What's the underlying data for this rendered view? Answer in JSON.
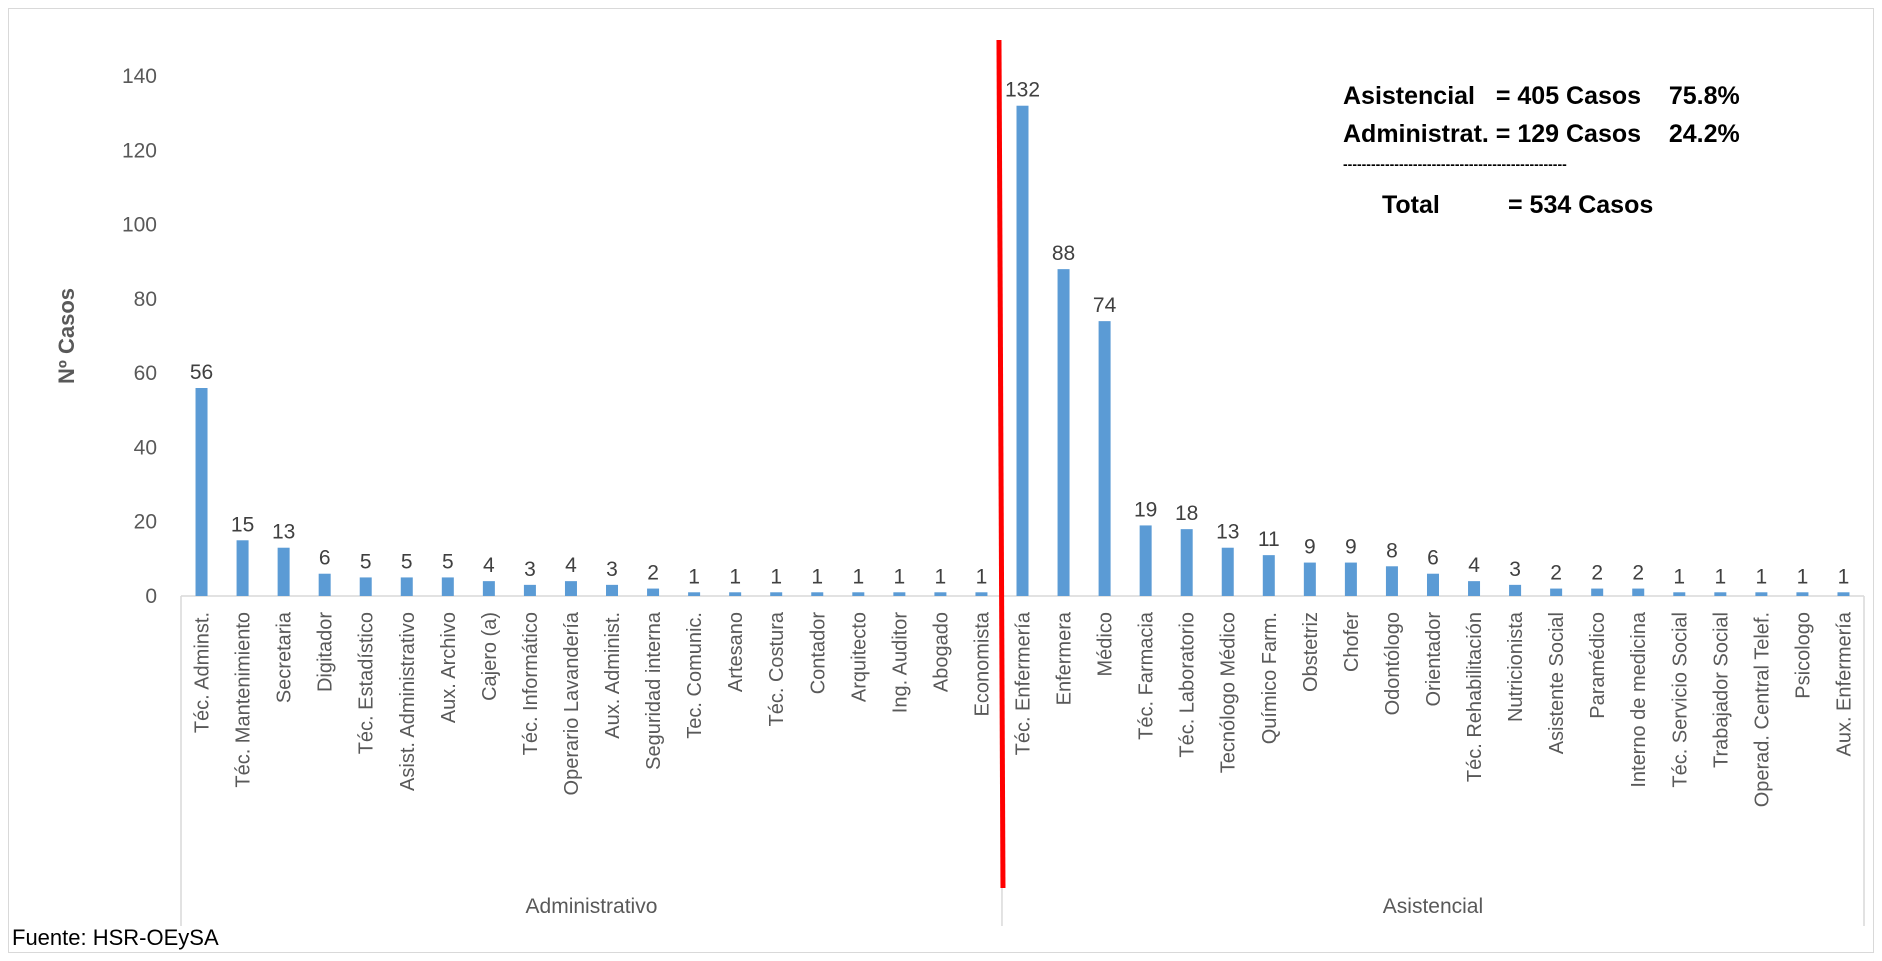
{
  "chart_data": {
    "type": "bar",
    "ylabel": "Nº Casos",
    "ylim": [
      0,
      140
    ],
    "yticks": [
      0,
      20,
      40,
      60,
      80,
      100,
      120,
      140
    ],
    "grid": false,
    "bar_color": "#5b9bd5",
    "divider_color": "#ff0000",
    "groups": [
      {
        "name": "Administrativo",
        "categories": [
          "Téc. Adminst.",
          "Téc. Mantenimiento",
          "Secretaria",
          "Digitador",
          "Téc. Estadístico",
          "Asist. Administrativo",
          "Aux. Archivo",
          "Cajero (a)",
          "Téc. Informático",
          "Operario Lavandería",
          "Aux. Administ.",
          "Seguridad interna",
          "Tec. Comunic.",
          "Artesano",
          "Téc. Costura",
          "Contador",
          "Arquitecto",
          "Ing. Auditor",
          "Abogado",
          "Economista"
        ],
        "values": [
          56,
          15,
          13,
          6,
          5,
          5,
          5,
          4,
          3,
          4,
          3,
          2,
          1,
          1,
          1,
          1,
          1,
          1,
          1,
          1
        ]
      },
      {
        "name": "Asistencial",
        "categories": [
          "Téc. Enfermería",
          "Enfermera",
          "Médico",
          "Téc. Farmacia",
          "Téc. Laboratorio",
          "Tecnólogo Médico",
          "Químico Farm.",
          "Obstetriz",
          "Chofer",
          "Odontólogo",
          "Orientador",
          "Téc. Rehabilitación",
          "Nutricionista",
          "Asistente Social",
          "Paramédico",
          "Interno de medicina",
          "Téc. Servicio Social",
          "Trabajador Social",
          "Operad. Central Telef.",
          "Psicologo",
          "Aux. Enfermería"
        ],
        "values": [
          132,
          88,
          74,
          19,
          18,
          13,
          11,
          9,
          9,
          8,
          6,
          4,
          3,
          2,
          2,
          2,
          1,
          1,
          1,
          1,
          1
        ]
      }
    ]
  },
  "summary": {
    "line1": "Asistencial   = 405 Casos    75.8%",
    "line2": "Administrat. = 129 Casos    24.2%",
    "separator": "------------------------------------------------",
    "total_label": "Total",
    "total_value": "= 534 Casos"
  },
  "source": "Fuente:  HSR-OEySA"
}
